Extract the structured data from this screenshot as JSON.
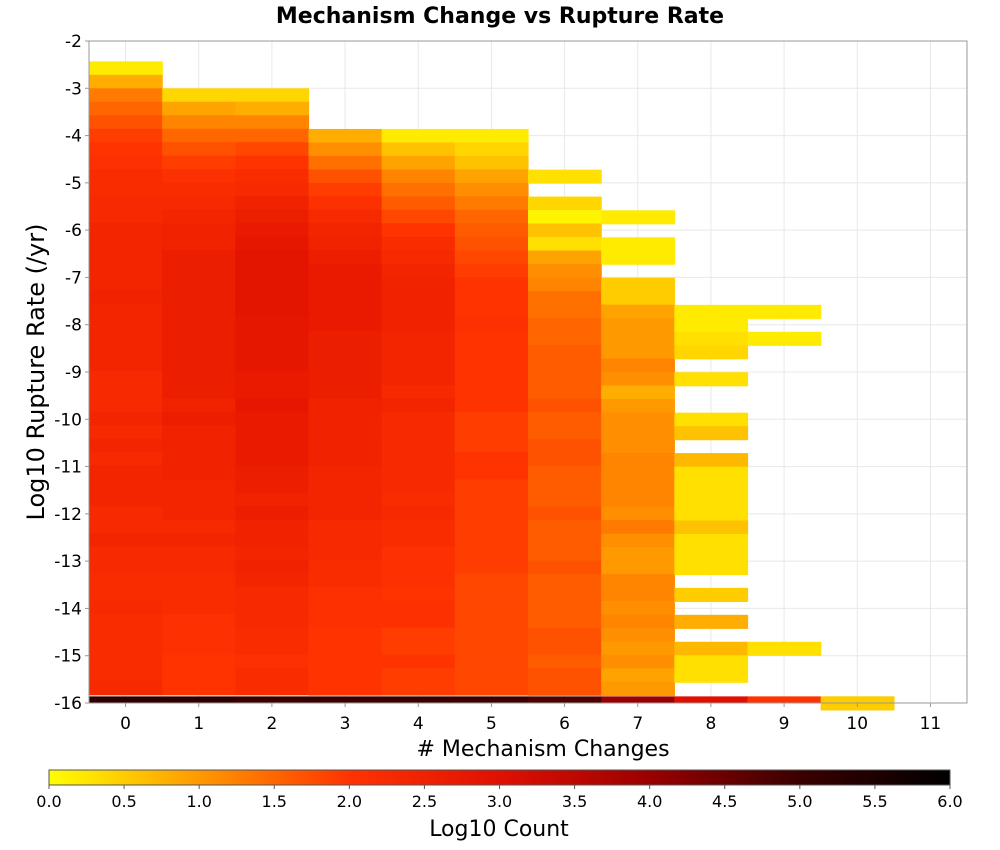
{
  "chart_data": {
    "type": "heatmap",
    "title": "Mechanism Change vs Rupture Rate",
    "xlabel": "# Mechanism Changes",
    "ylabel": "Log10 Rupture Rate (/yr)",
    "xlim": [
      -0.5,
      11.5
    ],
    "ylim": [
      -16,
      -2
    ],
    "x_ticks": [
      "0",
      "1",
      "2",
      "3",
      "4",
      "5",
      "6",
      "7",
      "8",
      "9",
      "10",
      "11"
    ],
    "y_ticks": [
      "-2",
      "-3",
      "-4",
      "-5",
      "-6",
      "-7",
      "-8",
      "-9",
      "-10",
      "-11",
      "-12",
      "-13",
      "-14",
      "-15",
      "-16"
    ],
    "y_bin_width": 0.285,
    "grid": true,
    "colorbar": {
      "label": "Log10 Count",
      "range": [
        0,
        6
      ],
      "ticks": [
        "0.0",
        "0.5",
        "1.0",
        "1.5",
        "2.0",
        "2.5",
        "3.0",
        "3.5",
        "4.0",
        "4.5",
        "5.0",
        "5.5",
        "6.0"
      ],
      "stops": [
        "#ffff00",
        "#ff9900",
        "#ff3300",
        "#e01000",
        "#9a0000",
        "#3a0000",
        "#000000"
      ]
    },
    "columns": [
      {
        "x": 0,
        "y_start": -2.43,
        "values": [
          0.2,
          0.8,
          1.3,
          1.5,
          1.7,
          1.9,
          2.0,
          2.1,
          2.2,
          2.2,
          2.3,
          2.3,
          2.4,
          2.4,
          2.4,
          2.4,
          2.4,
          2.5,
          2.4,
          2.4,
          2.4,
          2.4,
          2.4,
          2.3,
          2.3,
          2.3,
          2.4,
          2.3,
          2.4,
          2.3,
          2.4,
          2.4,
          2.4,
          2.3,
          2.3,
          2.4,
          2.3,
          2.3,
          2.2,
          2.2,
          2.3,
          2.2,
          2.2,
          2.2,
          2.2,
          2.2,
          2.3
        ]
      },
      {
        "x": 1,
        "y_start": -3.0,
        "values": [
          0.4,
          0.9,
          1.2,
          1.5,
          1.7,
          1.9,
          2.1,
          2.2,
          2.3,
          2.4,
          2.5,
          2.5,
          2.6,
          2.6,
          2.6,
          2.6,
          2.6,
          2.6,
          2.6,
          2.6,
          2.6,
          2.6,
          2.6,
          2.5,
          2.6,
          2.5,
          2.5,
          2.5,
          2.5,
          2.4,
          2.4,
          2.4,
          2.3,
          2.4,
          2.3,
          2.3,
          2.2,
          2.2,
          2.2,
          2.1,
          2.1,
          2.1,
          2.0,
          2.0,
          2.0
        ]
      },
      {
        "x": 2,
        "y_start": -3.0,
        "values": [
          0.4,
          0.8,
          1.2,
          1.5,
          1.8,
          2.0,
          2.2,
          2.3,
          2.5,
          2.6,
          2.7,
          2.8,
          2.9,
          2.9,
          2.9,
          2.9,
          2.9,
          2.8,
          2.8,
          2.8,
          2.8,
          2.7,
          2.7,
          2.8,
          2.7,
          2.7,
          2.7,
          2.7,
          2.6,
          2.6,
          2.5,
          2.6,
          2.5,
          2.5,
          2.4,
          2.5,
          2.4,
          2.3,
          2.3,
          2.3,
          2.2,
          2.2,
          2.1,
          2.2,
          2.2
        ]
      },
      {
        "x": 3,
        "y_start": -3.86,
        "values": [
          0.8,
          1.1,
          1.4,
          1.7,
          1.9,
          2.1,
          2.3,
          2.4,
          2.5,
          2.6,
          2.7,
          2.7,
          2.7,
          2.7,
          2.7,
          2.6,
          2.6,
          2.6,
          2.6,
          2.6,
          2.5,
          2.5,
          2.5,
          2.5,
          2.5,
          2.4,
          2.4,
          2.4,
          2.4,
          2.3,
          2.3,
          2.3,
          2.2,
          2.2,
          2.1,
          2.1,
          2.1,
          2.0,
          2.0,
          2.0,
          2.0,
          2.0
        ]
      },
      {
        "x": 4,
        "y_start": -3.86,
        "values": [
          0.2,
          0.6,
          0.9,
          1.2,
          1.4,
          1.6,
          1.8,
          2.0,
          2.2,
          2.3,
          2.4,
          2.5,
          2.5,
          2.5,
          2.5,
          2.4,
          2.4,
          2.4,
          2.4,
          2.3,
          2.4,
          2.3,
          2.3,
          2.3,
          2.3,
          2.3,
          2.3,
          2.2,
          2.3,
          2.2,
          2.2,
          2.1,
          2.1,
          2.1,
          2.0,
          2.1,
          2.1,
          1.9,
          1.9,
          2.0,
          1.9,
          1.9
        ]
      },
      {
        "x": 5,
        "y_start": -3.86,
        "values": [
          0.2,
          0.4,
          0.6,
          0.9,
          1.1,
          1.3,
          1.5,
          1.6,
          1.7,
          1.8,
          1.9,
          2.0,
          2.0,
          2.0,
          2.1,
          2.0,
          2.0,
          2.0,
          2.0,
          2.0,
          2.0,
          1.9,
          1.9,
          1.9,
          2.0,
          2.0,
          1.9,
          1.9,
          1.9,
          1.9,
          1.9,
          1.9,
          1.9,
          1.8,
          1.8,
          1.8,
          1.8,
          1.8,
          1.8,
          1.8,
          1.8,
          1.8
        ]
      },
      {
        "x": 6,
        "y_start": -4.72,
        "values": [
          0.3,
          null,
          0.4,
          0.1,
          0.6,
          0.3,
          0.9,
          1.1,
          1.2,
          1.4,
          1.4,
          1.5,
          1.5,
          1.6,
          1.6,
          1.6,
          1.6,
          1.7,
          1.6,
          1.6,
          1.7,
          1.7,
          1.6,
          1.6,
          1.6,
          1.7,
          1.6,
          1.6,
          1.6,
          1.7,
          1.6,
          1.6,
          1.6,
          1.6,
          1.7,
          1.7,
          1.6,
          1.7,
          1.7
        ]
      },
      {
        "x": 7,
        "y_start": -5.58,
        "values": [
          0.2,
          null,
          0.2,
          0.2,
          null,
          0.5,
          0.5,
          0.9,
          1.0,
          1.0,
          1.0,
          1.2,
          1.1,
          0.8,
          1.0,
          1.1,
          1.1,
          1.1,
          1.2,
          1.2,
          1.2,
          1.2,
          1.1,
          1.3,
          1.1,
          1.0,
          1.0,
          1.2,
          1.2,
          1.1,
          1.2,
          1.1,
          1.0,
          1.1,
          0.9,
          1.0
        ]
      },
      {
        "x": 8,
        "y_start": -7.58,
        "values": [
          0.2,
          0.2,
          0.3,
          0.4,
          null,
          0.3,
          null,
          null,
          0.3,
          0.6,
          null,
          0.7,
          0.3,
          0.3,
          0.3,
          0.3,
          0.6,
          0.3,
          0.3,
          0.3,
          null,
          0.5,
          null,
          0.8,
          null,
          0.7,
          0.3,
          0.3
        ]
      },
      {
        "x": 9,
        "y_start": -7.58,
        "values": [
          0.2,
          null,
          0.2,
          null,
          null,
          null,
          null,
          null,
          null,
          null,
          null,
          null,
          null,
          null,
          null,
          null,
          null,
          null,
          null,
          null,
          null,
          null,
          null,
          null,
          null,
          0.3,
          null,
          null
        ]
      },
      {
        "x": 10,
        "y_start": -15.86,
        "values": [
          0.5
        ]
      }
    ],
    "floor_row": {
      "y": -15.86,
      "values": [
        5.2,
        5.2,
        5.0,
        5.0,
        5.0,
        5.0,
        4.8,
        4.0,
        3.0,
        2.0,
        0.5
      ]
    }
  }
}
